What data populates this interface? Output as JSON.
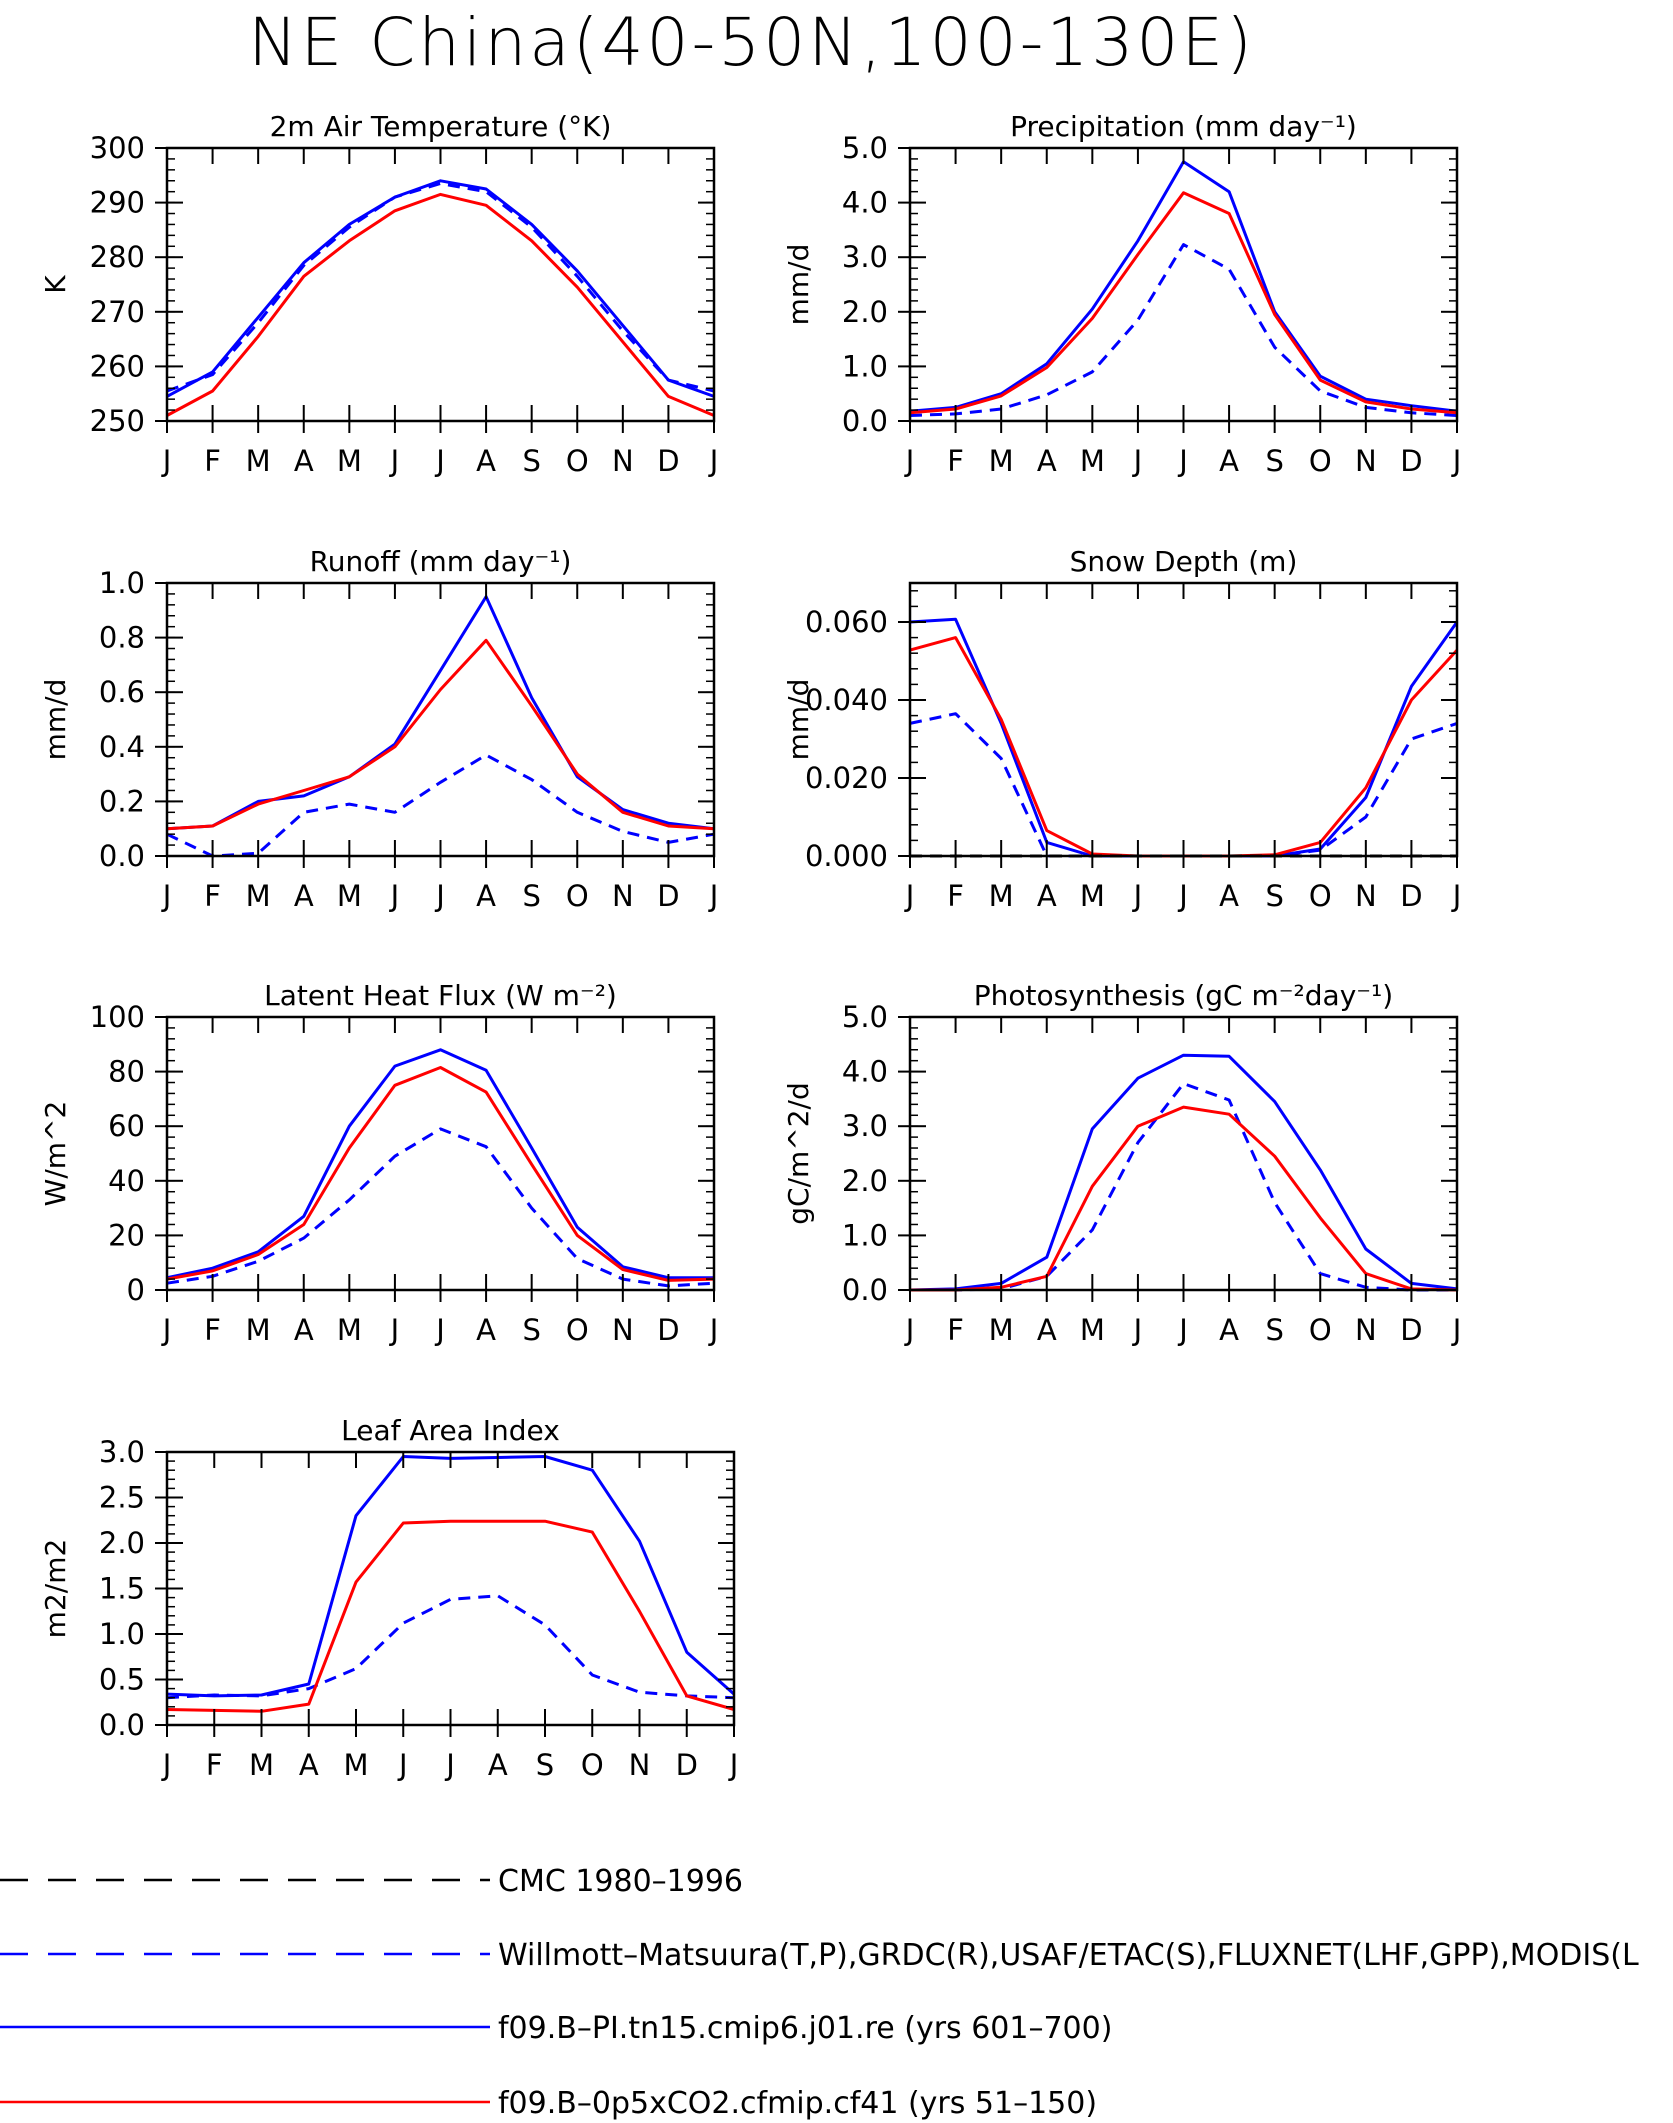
{
  "title": "NE China(40-50N,100-130E)",
  "colors": {
    "obs": "#0000ff",
    "model1": "#0000ff",
    "model2": "#ff0000",
    "ref": "#000000"
  },
  "chart_data": [
    {
      "type": "line",
      "title": "2m Air Temperature (°K)",
      "ylabel": "K",
      "xlabels": [
        "J",
        "F",
        "M",
        "A",
        "M",
        "J",
        "J",
        "A",
        "S",
        "O",
        "N",
        "D",
        "J"
      ],
      "ylim": [
        250,
        300
      ],
      "yticks": [
        "250",
        "260",
        "270",
        "280",
        "290",
        "300"
      ],
      "series": [
        {
          "values": [
            255.5,
            258.5,
            268,
            278.5,
            285.5,
            291,
            293.5,
            292,
            285.5,
            276.5,
            266.5,
            257.5,
            255.5
          ]
        },
        {
          "values": [
            254.5,
            259,
            269,
            279,
            286,
            291,
            294,
            292.5,
            286,
            277.5,
            267.5,
            257.5,
            254.5
          ]
        },
        {
          "values": [
            251,
            255.5,
            265.5,
            276.5,
            283,
            288.5,
            291.5,
            289.5,
            283,
            274.5,
            264.5,
            254.5,
            251
          ]
        }
      ]
    },
    {
      "type": "line",
      "title": "Precipitation (mm day⁻¹)",
      "ylabel": "mm/d",
      "xlabels": [
        "J",
        "F",
        "M",
        "A",
        "M",
        "J",
        "J",
        "A",
        "S",
        "O",
        "N",
        "D",
        "J"
      ],
      "ylim": [
        0,
        5
      ],
      "yticks": [
        "0.0",
        "1.0",
        "2.0",
        "3.0",
        "4.0",
        "5.0"
      ],
      "series": [
        {
          "values": [
            0.1,
            0.13,
            0.22,
            0.48,
            0.9,
            1.85,
            3.23,
            2.78,
            1.35,
            0.55,
            0.25,
            0.15,
            0.1
          ]
        },
        {
          "values": [
            0.18,
            0.25,
            0.5,
            1.05,
            2.05,
            3.3,
            4.75,
            4.2,
            2.0,
            0.82,
            0.4,
            0.28,
            0.18
          ]
        },
        {
          "values": [
            0.15,
            0.22,
            0.46,
            0.98,
            1.88,
            3.05,
            4.18,
            3.8,
            1.95,
            0.75,
            0.35,
            0.22,
            0.15
          ]
        }
      ]
    },
    {
      "type": "line",
      "title": "Runoff (mm day⁻¹)",
      "ylabel": "mm/d",
      "xlabels": [
        "J",
        "F",
        "M",
        "A",
        "M",
        "J",
        "J",
        "A",
        "S",
        "O",
        "N",
        "D",
        "J"
      ],
      "ylim": [
        0,
        1
      ],
      "yticks": [
        "0.0",
        "0.2",
        "0.4",
        "0.6",
        "0.8",
        "1.0"
      ],
      "series": [
        {
          "values": [
            0.08,
            0.0,
            0.01,
            0.16,
            0.19,
            0.16,
            0.27,
            0.37,
            0.28,
            0.16,
            0.09,
            0.05,
            0.08
          ]
        },
        {
          "values": [
            0.1,
            0.11,
            0.2,
            0.22,
            0.29,
            0.41,
            0.68,
            0.95,
            0.58,
            0.29,
            0.17,
            0.12,
            0.1
          ]
        },
        {
          "values": [
            0.1,
            0.11,
            0.19,
            0.24,
            0.29,
            0.4,
            0.61,
            0.79,
            0.55,
            0.3,
            0.16,
            0.11,
            0.1
          ]
        }
      ]
    },
    {
      "type": "line",
      "title": "Snow Depth (m)",
      "ylabel": "mm/d",
      "xlabels": [
        "J",
        "F",
        "M",
        "A",
        "M",
        "J",
        "J",
        "A",
        "S",
        "O",
        "N",
        "D",
        "J"
      ],
      "ylim": [
        0,
        0.07
      ],
      "yticks": [
        "0.000",
        "0.020",
        "0.040",
        "0.060"
      ],
      "ytickvals": [
        0,
        0.02,
        0.04,
        0.06
      ],
      "series": [
        {
          "values": [
            0.034,
            0.0365,
            0.025,
            0.0,
            0.0,
            0.0,
            0.0,
            0.0,
            0.0,
            0.0015,
            0.01,
            0.03,
            0.034
          ]
        },
        {
          "values": [
            0.06,
            0.0607,
            0.034,
            0.0035,
            0.0,
            0.0,
            0.0,
            0.0,
            0.0,
            0.0018,
            0.015,
            0.0435,
            0.06
          ]
        },
        {
          "values": [
            0.0528,
            0.056,
            0.035,
            0.0065,
            0.0005,
            0.0,
            0.0,
            0.0,
            0.0003,
            0.0035,
            0.0175,
            0.04,
            0.0528
          ]
        },
        {
          "values": [
            0,
            0,
            0,
            0,
            0,
            0,
            0,
            0,
            0,
            0,
            0,
            0,
            0
          ]
        }
      ]
    },
    {
      "type": "line",
      "title": "Latent Heat Flux (W m⁻²)",
      "ylabel": "W/m^2",
      "xlabels": [
        "J",
        "F",
        "M",
        "A",
        "M",
        "J",
        "J",
        "A",
        "S",
        "O",
        "N",
        "D",
        "J"
      ],
      "ylim": [
        0,
        100
      ],
      "yticks": [
        "0",
        "20",
        "40",
        "60",
        "80",
        "100"
      ],
      "series": [
        {
          "values": [
            2.5,
            5,
            10.5,
            19,
            33,
            49,
            59,
            52.5,
            30,
            11.5,
            4,
            1.5,
            2.5
          ]
        },
        {
          "values": [
            4.5,
            8,
            14,
            27,
            60,
            82,
            88,
            80.5,
            52,
            23,
            8.5,
            4.5,
            4.5
          ]
        },
        {
          "values": [
            4,
            7,
            13,
            24,
            52,
            75,
            81.5,
            72.5,
            46,
            20,
            7.5,
            3.5,
            4
          ]
        }
      ]
    },
    {
      "type": "line",
      "title": "Photosynthesis (gC m⁻²day⁻¹)",
      "ylabel": "gC/m^2/d",
      "xlabels": [
        "J",
        "F",
        "M",
        "A",
        "M",
        "J",
        "J",
        "A",
        "S",
        "O",
        "N",
        "D",
        "J"
      ],
      "ylim": [
        0,
        5
      ],
      "yticks": [
        "0.0",
        "1.0",
        "2.0",
        "3.0",
        "4.0",
        "5.0"
      ],
      "series": [
        {
          "values": [
            0.0,
            0.0,
            0.02,
            0.25,
            1.1,
            2.7,
            3.78,
            3.48,
            1.6,
            0.3,
            0.05,
            0.0,
            0.0
          ]
        },
        {
          "values": [
            0.0,
            0.02,
            0.12,
            0.6,
            2.95,
            3.88,
            4.3,
            4.28,
            3.45,
            2.2,
            0.75,
            0.12,
            0.02
          ]
        },
        {
          "values": [
            0.0,
            0.0,
            0.05,
            0.25,
            1.9,
            3.0,
            3.35,
            3.22,
            2.45,
            1.32,
            0.3,
            0.02,
            0.0
          ]
        }
      ]
    },
    {
      "type": "line",
      "title": "Leaf Area Index",
      "ylabel": "m2/m2",
      "xlabels": [
        "J",
        "F",
        "M",
        "A",
        "M",
        "J",
        "J",
        "A",
        "S",
        "O",
        "N",
        "D",
        "J"
      ],
      "ylim": [
        0,
        3
      ],
      "yticks": [
        "0.0",
        "0.5",
        "1.0",
        "1.5",
        "2.0",
        "2.5",
        "3.0"
      ],
      "series": [
        {
          "values": [
            0.3,
            0.33,
            0.32,
            0.4,
            0.62,
            1.12,
            1.38,
            1.42,
            1.1,
            0.55,
            0.36,
            0.32,
            0.3
          ]
        },
        {
          "values": [
            0.34,
            0.32,
            0.33,
            0.45,
            2.3,
            2.95,
            2.93,
            2.94,
            2.95,
            2.8,
            2.02,
            0.8,
            0.34
          ]
        },
        {
          "values": [
            0.17,
            0.16,
            0.15,
            0.23,
            1.57,
            2.22,
            2.24,
            2.24,
            2.24,
            2.12,
            1.25,
            0.32,
            0.17
          ]
        }
      ]
    }
  ],
  "legend": [
    {
      "label": "CMC 1980–1996",
      "style": "ref"
    },
    {
      "label": "Willmott–Matsuura(T,P),GRDC(R),USAF/ETAC(S),FLUXNET(LHF,GPP),MODIS(L",
      "style": "obs"
    },
    {
      "label": "f09.B–PI.tn15.cmip6.j01.re (yrs 601–700)",
      "style": "model1"
    },
    {
      "label": "f09.B–0p5xCO2.cfmip.cf41 (yrs 51–150)",
      "style": "model2"
    }
  ]
}
